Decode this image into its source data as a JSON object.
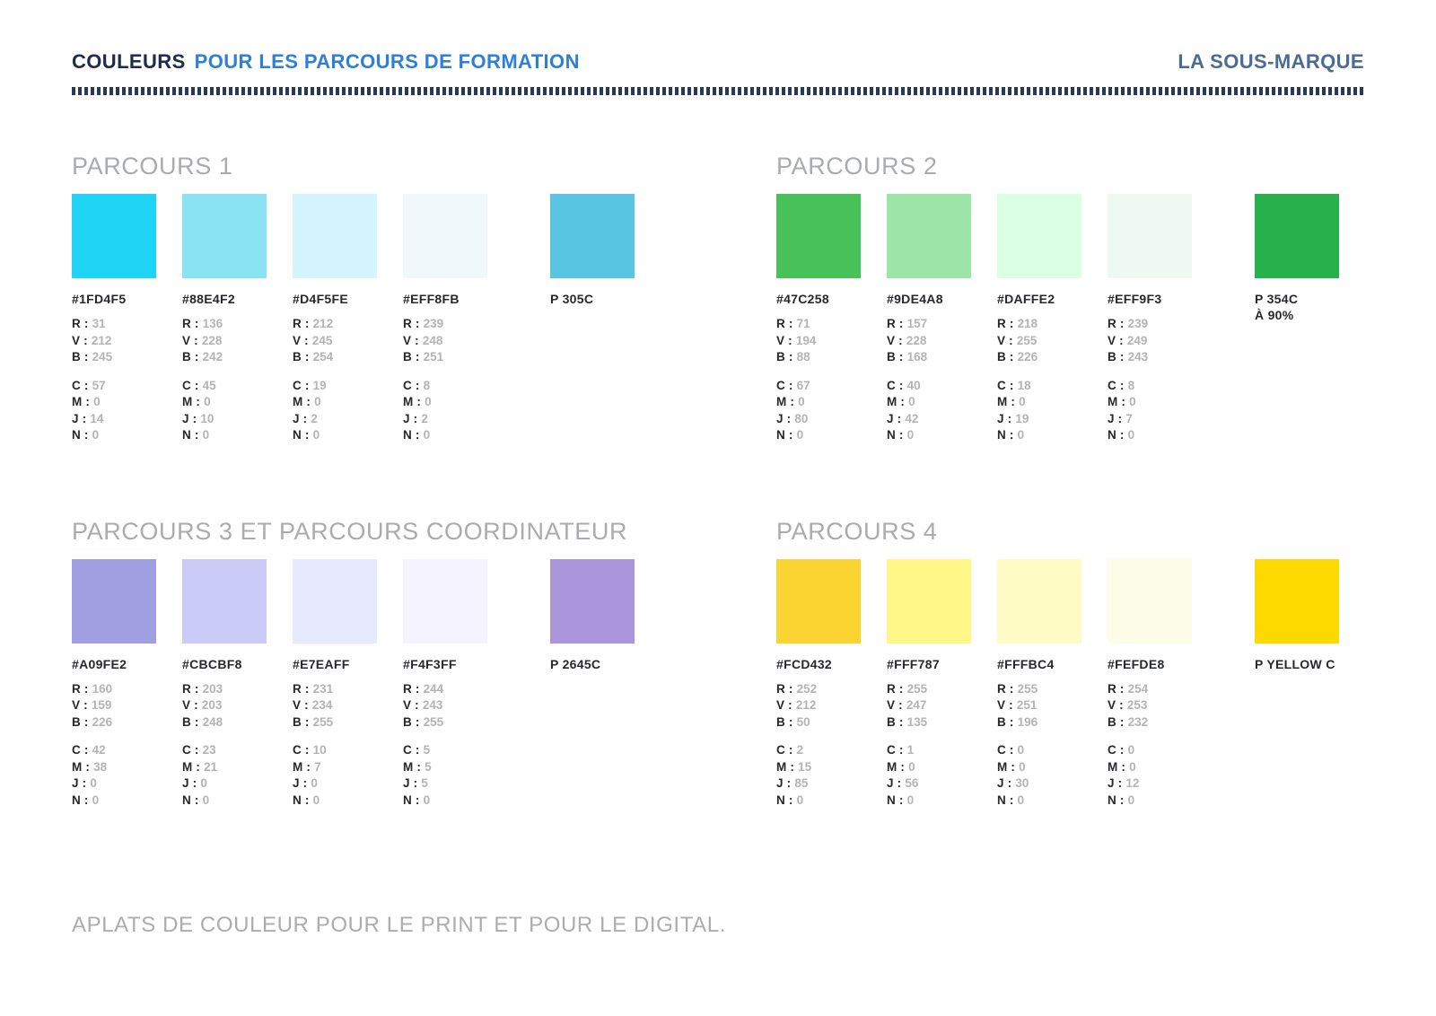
{
  "header": {
    "title_bold": "COULEURS",
    "title_rest": "POUR LES PARCOURS DE FORMATION",
    "right": "LA SOUS-MARQUE"
  },
  "labels": {
    "r": "R :",
    "v": "V :",
    "b": "B :",
    "c": "C :",
    "m": "M :",
    "j": "J :",
    "n": "N :"
  },
  "colors": {
    "header_dark_navy": "#1E2B4F",
    "header_blue": "#2E7FD6",
    "submark_steel_blue": "#4A6B94",
    "dotted_rule_navy": "#25395C",
    "section_title_gray": "#A9ABAE",
    "value_gray": "#B2B3B5",
    "label_dark": "#26282B"
  },
  "sections": [
    {
      "title": "PARCOURS 1",
      "swatches": [
        {
          "hex": "#1FD4F5",
          "r": "31",
          "v": "212",
          "b": "245",
          "c": "57",
          "m": "0",
          "j": "14",
          "n": "0"
        },
        {
          "hex": "#88E4F2",
          "r": "136",
          "v": "228",
          "b": "242",
          "c": "45",
          "m": "0",
          "j": "10",
          "n": "0"
        },
        {
          "hex": "#D4F5FE",
          "r": "212",
          "v": "245",
          "b": "254",
          "c": "19",
          "m": "0",
          "j": "2",
          "n": "0"
        },
        {
          "hex": "#EFF8FB",
          "r": "239",
          "v": "248",
          "b": "251",
          "c": "8",
          "m": "0",
          "j": "2",
          "n": "0"
        }
      ],
      "pantone": {
        "name": "P 305C",
        "name2": "",
        "color": "#58C6E3"
      }
    },
    {
      "title": "PARCOURS 2",
      "swatches": [
        {
          "hex": "#47C258",
          "r": "71",
          "v": "194",
          "b": "88",
          "c": "67",
          "m": "0",
          "j": "80",
          "n": "0"
        },
        {
          "hex": "#9DE4A8",
          "r": "157",
          "v": "228",
          "b": "168",
          "c": "40",
          "m": "0",
          "j": "42",
          "n": "0"
        },
        {
          "hex": "#DAFFE2",
          "r": "218",
          "v": "255",
          "b": "226",
          "c": "18",
          "m": "0",
          "j": "19",
          "n": "0"
        },
        {
          "hex": "#EFF9F3",
          "r": "239",
          "v": "249",
          "b": "243",
          "c": "8",
          "m": "0",
          "j": "7",
          "n": "0"
        }
      ],
      "pantone": {
        "name": "P 354C",
        "name2": "À 90%",
        "color": "#27B04C"
      }
    },
    {
      "title": "PARCOURS 3 ET PARCOURS COORDINATEUR",
      "swatches": [
        {
          "hex": "#A09FE2",
          "r": "160",
          "v": "159",
          "b": "226",
          "c": "42",
          "m": "38",
          "j": "0",
          "n": "0"
        },
        {
          "hex": "#CBCBF8",
          "r": "203",
          "v": "203",
          "b": "248",
          "c": "23",
          "m": "21",
          "j": "0",
          "n": "0"
        },
        {
          "hex": "#E7EAFF",
          "r": "231",
          "v": "234",
          "b": "255",
          "c": "10",
          "m": "7",
          "j": "0",
          "n": "0"
        },
        {
          "hex": "#F4F3FF",
          "r": "244",
          "v": "243",
          "b": "255",
          "c": "5",
          "m": "5",
          "j": "5",
          "n": "0"
        }
      ],
      "pantone": {
        "name": "P 2645C",
        "name2": "",
        "color": "#AC96DB"
      }
    },
    {
      "title": "PARCOURS 4",
      "swatches": [
        {
          "hex": "#FCD432",
          "r": "252",
          "v": "212",
          "b": "50",
          "c": "2",
          "m": "15",
          "j": "85",
          "n": "0"
        },
        {
          "hex": "#FFF787",
          "r": "255",
          "v": "247",
          "b": "135",
          "c": "1",
          "m": "0",
          "j": "56",
          "n": "0"
        },
        {
          "hex": "#FFFBC4",
          "r": "255",
          "v": "251",
          "b": "196",
          "c": "0",
          "m": "0",
          "j": "30",
          "n": "0"
        },
        {
          "hex": "#FEFDE8",
          "r": "254",
          "v": "253",
          "b": "232",
          "c": "0",
          "m": "0",
          "j": "12",
          "n": "0"
        }
      ],
      "pantone": {
        "name": "P YELLOW C",
        "name2": "",
        "color": "#FDD900"
      }
    }
  ],
  "footer": "APLATS DE COULEUR POUR LE PRINT ET POUR LE DIGITAL."
}
